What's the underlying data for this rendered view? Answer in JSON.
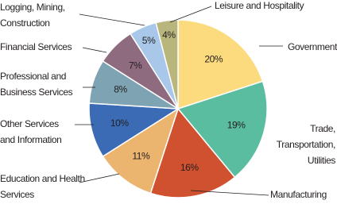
{
  "chart_data": {
    "type": "pie",
    "categories": [
      [
        "Government"
      ],
      [
        "Trade,",
        "Transportation,",
        "Utilities"
      ],
      [
        "Manufacturing"
      ],
      [
        "Education and Health",
        "Services"
      ],
      [
        "Other Services",
        "and Information"
      ],
      [
        "Professional and",
        "Business Services"
      ],
      [
        "Financial Services"
      ],
      [
        "Logging, Mining,",
        "Construction"
      ],
      [
        "Leisure and Hospitality"
      ]
    ],
    "values": [
      20,
      19,
      16,
      11,
      10,
      8,
      7,
      5,
      4
    ],
    "value_labels": [
      "20%",
      "19%",
      "16%",
      "11%",
      "10%",
      "8%",
      "7%",
      "5%",
      "4%"
    ],
    "colors": [
      "#fbdb7e",
      "#5bbd9f",
      "#d0512f",
      "#ecb56f",
      "#3b6bb5",
      "#7ea3b3",
      "#8f6b80",
      "#a9c7e8",
      "#b9b67d"
    ]
  }
}
